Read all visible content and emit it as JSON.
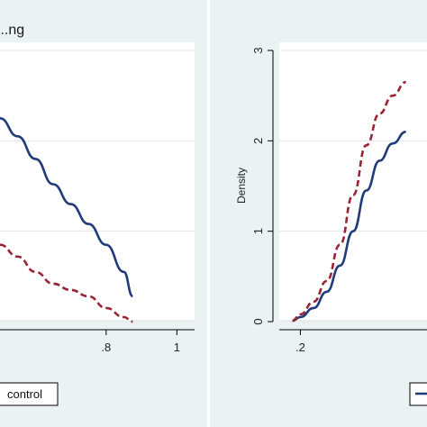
{
  "chart_data": [
    {
      "type": "line",
      "title": "...ng",
      "xlabel": "",
      "ylabel": "",
      "x_ticks": [
        ".8",
        "1"
      ],
      "xlim": [
        0.5,
        1.05
      ],
      "ylim": [
        0,
        3
      ],
      "grid": true,
      "series": [
        {
          "name": "",
          "style": "solid",
          "color": "#1f3b7a",
          "x": [
            0.5,
            0.55,
            0.6,
            0.65,
            0.7,
            0.75,
            0.8,
            0.85,
            0.875
          ],
          "y": [
            2.25,
            2.05,
            1.8,
            1.52,
            1.3,
            1.08,
            0.85,
            0.55,
            0.28
          ]
        },
        {
          "name": "control",
          "style": "dashed",
          "color": "#9b2335",
          "x": [
            0.5,
            0.55,
            0.6,
            0.65,
            0.7,
            0.75,
            0.8,
            0.85,
            0.875
          ],
          "y": [
            0.85,
            0.72,
            0.55,
            0.42,
            0.35,
            0.28,
            0.15,
            0.05,
            0.0
          ]
        }
      ],
      "legend": {
        "placement": "bottom",
        "entries": [
          "control"
        ]
      }
    },
    {
      "type": "line",
      "title": "",
      "xlabel": "",
      "ylabel": "Density",
      "x_ticks": [
        ".2"
      ],
      "y_ticks": [
        "0",
        "1",
        "2",
        "3"
      ],
      "xlim": [
        0.12,
        0.68
      ],
      "ylim": [
        0,
        3
      ],
      "grid": true,
      "series": [
        {
          "name": "",
          "style": "solid",
          "color": "#1f3b7a",
          "x": [
            0.17,
            0.2,
            0.25,
            0.3,
            0.35,
            0.4,
            0.45,
            0.5,
            0.55,
            0.6
          ],
          "y": [
            0.01,
            0.05,
            0.15,
            0.33,
            0.62,
            1.0,
            1.45,
            1.78,
            1.97,
            2.1
          ]
        },
        {
          "name": "",
          "style": "dashed",
          "color": "#9b2335",
          "x": [
            0.17,
            0.2,
            0.25,
            0.3,
            0.35,
            0.4,
            0.45,
            0.5,
            0.55,
            0.6
          ],
          "y": [
            0.01,
            0.08,
            0.22,
            0.45,
            0.85,
            1.4,
            1.95,
            2.3,
            2.5,
            2.65
          ]
        }
      ],
      "legend": {
        "placement": "bottom",
        "entries": []
      }
    }
  ]
}
